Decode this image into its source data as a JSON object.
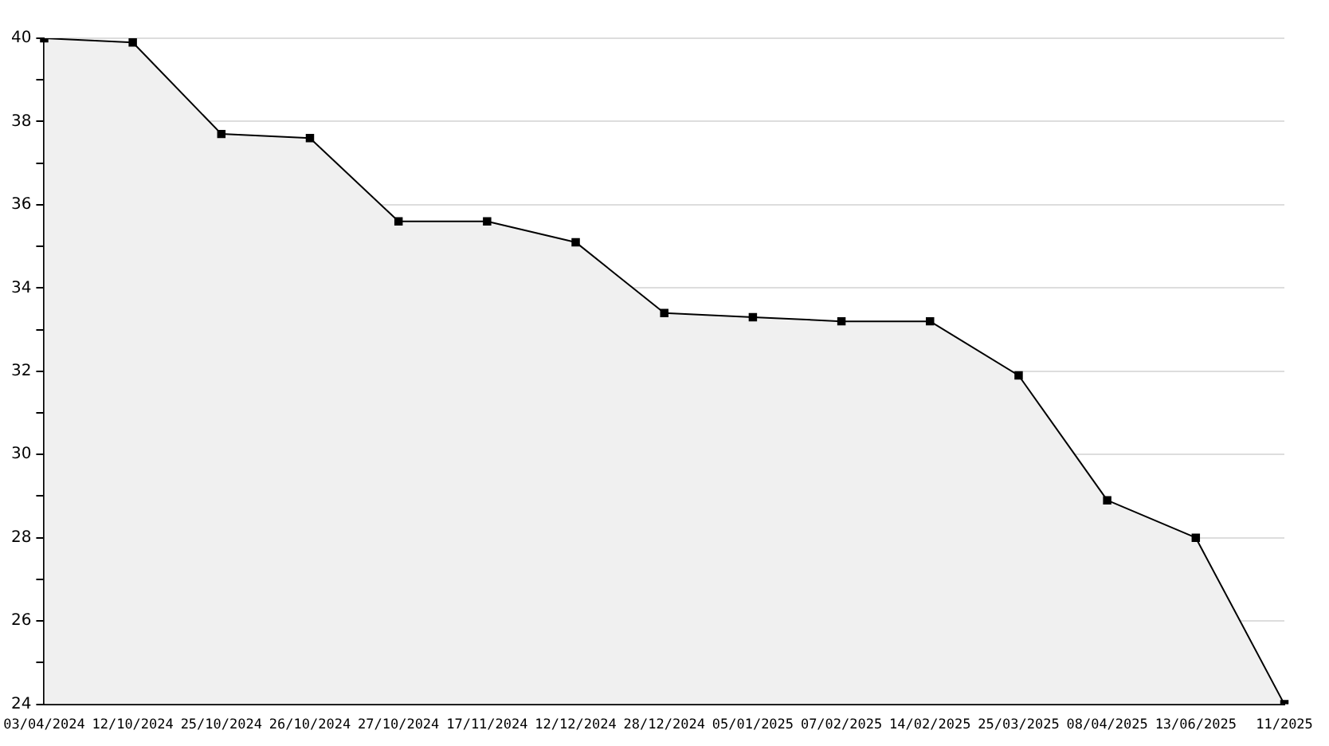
{
  "chart_data": {
    "type": "area",
    "categories": [
      "03/04/2024",
      "12/10/2024",
      "25/10/2024",
      "26/10/2024",
      "27/10/2024",
      "17/11/2024",
      "12/12/2024",
      "28/12/2024",
      "05/01/2025",
      "07/02/2025",
      "14/02/2025",
      "25/03/2025",
      "08/04/2025",
      "13/06/2025",
      "11/2025"
    ],
    "series": [
      {
        "color": "#000000",
        "values": [
          40,
          39.9,
          37.7,
          37.6,
          35.6,
          35.6,
          35.1,
          33.4,
          33.3,
          33.2,
          33.2,
          31.9,
          28.9,
          28,
          24
        ]
      }
    ],
    "ylim": [
      24,
      40
    ],
    "yticks": [
      24,
      {
        "value": 25,
        "label": null
      },
      26,
      {
        "value": 27,
        "label": null
      },
      28,
      {
        "value": 29,
        "label": null
      },
      30,
      {
        "value": 31,
        "label": null
      },
      32,
      {
        "value": 33,
        "label": null
      },
      34,
      {
        "value": 35,
        "label": null
      },
      36,
      {
        "value": 37,
        "label": null
      },
      38,
      {
        "value": 39,
        "label": null
      },
      40
    ],
    "grid": "y",
    "marker": "square",
    "line_style": "solid",
    "legend": false
  }
}
